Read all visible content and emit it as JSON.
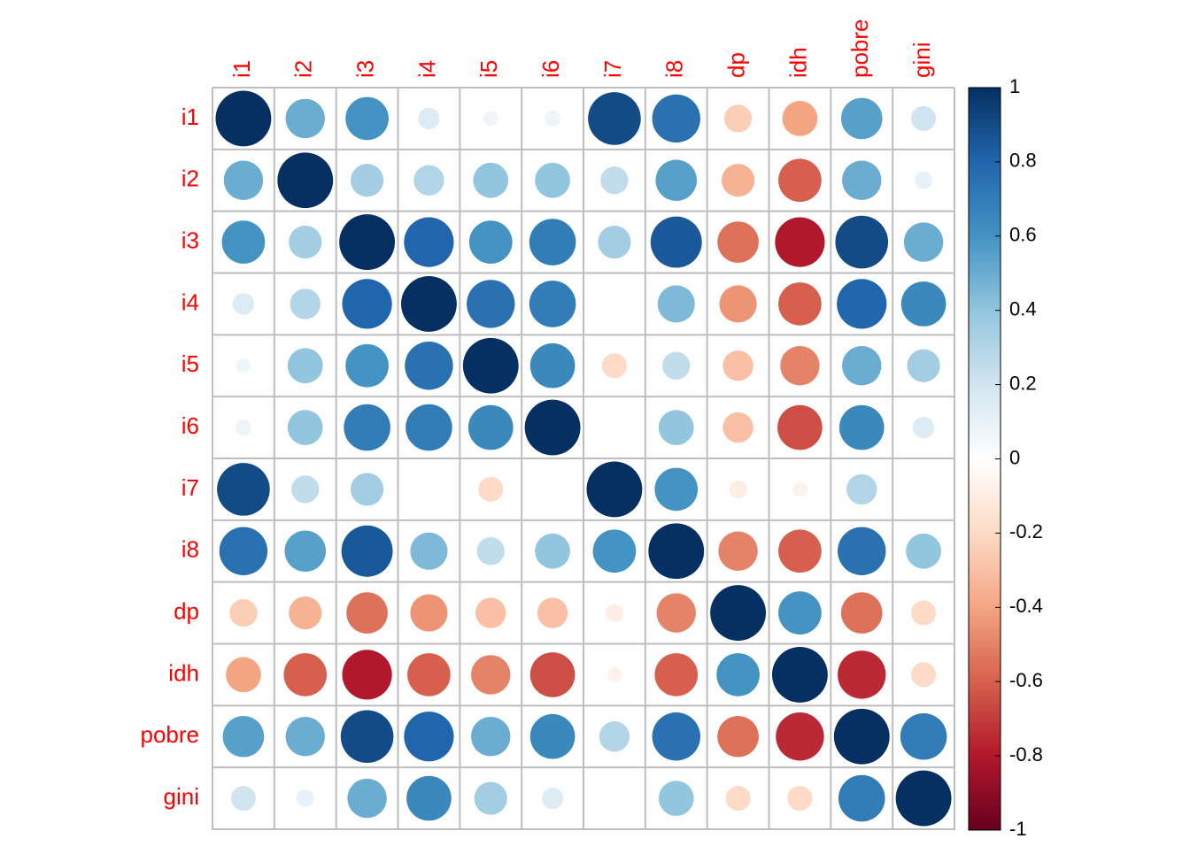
{
  "chart_data": {
    "type": "corrplot",
    "columns": [
      "i1",
      "i2",
      "i3",
      "i4",
      "i5",
      "i6",
      "i7",
      "i8",
      "dp",
      "idh",
      "pobre",
      "gini"
    ],
    "rows": [
      "i1",
      "i2",
      "i3",
      "i4",
      "i5",
      "i6",
      "i7",
      "i8",
      "dp",
      "idh",
      "pobre",
      "gini"
    ],
    "values": [
      [
        1,
        0.5,
        0.6,
        0.15,
        0.07,
        0.08,
        0.9,
        0.75,
        -0.25,
        -0.4,
        0.55,
        0.2
      ],
      [
        0.5,
        1,
        0.35,
        0.3,
        0.4,
        0.4,
        0.25,
        0.55,
        -0.35,
        -0.6,
        0.5,
        0.1
      ],
      [
        0.6,
        0.35,
        1,
        0.8,
        0.6,
        0.7,
        0.35,
        0.85,
        -0.55,
        -0.8,
        0.9,
        0.5
      ],
      [
        0.15,
        0.3,
        0.8,
        1,
        0.75,
        0.7,
        0.01,
        0.45,
        -0.45,
        -0.6,
        0.8,
        0.65
      ],
      [
        0.07,
        0.4,
        0.6,
        0.75,
        1,
        0.65,
        -0.2,
        0.25,
        -0.3,
        -0.5,
        0.5,
        0.35
      ],
      [
        0.08,
        0.4,
        0.7,
        0.7,
        0.65,
        1,
        0.01,
        0.4,
        -0.3,
        -0.65,
        0.65,
        0.15
      ],
      [
        0.9,
        0.25,
        0.35,
        0.01,
        -0.2,
        0.01,
        1,
        0.6,
        -0.1,
        -0.07,
        0.3,
        0.01
      ],
      [
        0.75,
        0.55,
        0.85,
        0.45,
        0.25,
        0.4,
        0.6,
        1,
        -0.5,
        -0.6,
        0.75,
        0.4
      ],
      [
        -0.25,
        -0.35,
        -0.55,
        -0.45,
        -0.3,
        -0.3,
        -0.1,
        -0.5,
        1,
        0.6,
        -0.55,
        -0.2
      ],
      [
        -0.4,
        -0.6,
        -0.8,
        -0.6,
        -0.5,
        -0.65,
        -0.07,
        -0.6,
        0.6,
        1,
        -0.75,
        -0.2
      ],
      [
        0.55,
        0.5,
        0.9,
        0.8,
        0.5,
        0.65,
        0.3,
        0.75,
        -0.55,
        -0.75,
        1,
        0.7
      ],
      [
        0.2,
        0.1,
        0.5,
        0.65,
        0.35,
        0.15,
        0.01,
        0.4,
        -0.2,
        -0.2,
        0.7,
        1
      ]
    ],
    "colormap": [
      "#67001F",
      "#B2182B",
      "#D6604D",
      "#F4A582",
      "#FDDBC7",
      "#FFFFFF",
      "#D1E5F0",
      "#92C5DE",
      "#4393C3",
      "#2166AC",
      "#053061"
    ],
    "label_color": "#ff0000",
    "clim": [
      -1,
      1
    ],
    "cticks": [
      -1,
      -0.8,
      -0.6,
      -0.4,
      -0.2,
      0,
      0.2,
      0.4,
      0.6,
      0.8,
      1
    ]
  }
}
